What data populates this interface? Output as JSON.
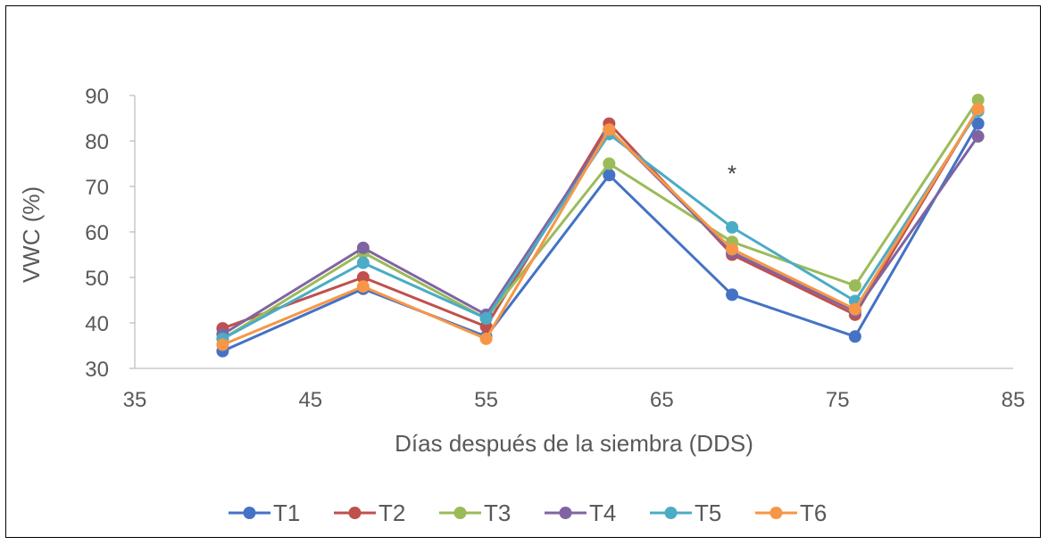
{
  "chart_data": {
    "type": "line",
    "xlabel": "Días después de la siembra (DDS)",
    "ylabel": "VWC (%)",
    "xlim": [
      35,
      85
    ],
    "ylim": [
      30,
      90
    ],
    "xticks": [
      35,
      45,
      55,
      65,
      75,
      85
    ],
    "yticks": [
      30,
      40,
      50,
      60,
      70,
      80,
      90
    ],
    "grid": false,
    "legend_position": "bottom",
    "x": [
      40,
      48,
      55,
      62,
      69,
      76,
      83
    ],
    "series": [
      {
        "name": "T1",
        "color": "#4472C4",
        "values": [
          33.8,
          47.5,
          37.0,
          72.5,
          46.2,
          37.0,
          83.8
        ]
      },
      {
        "name": "T2",
        "color": "#C0504D",
        "values": [
          38.8,
          50.0,
          39.2,
          83.8,
          55.0,
          41.8,
          87.0
        ]
      },
      {
        "name": "T3",
        "color": "#9BBB59",
        "values": [
          36.5,
          55.5,
          41.0,
          75.0,
          57.8,
          48.2,
          89.0
        ]
      },
      {
        "name": "T4",
        "color": "#8064A2",
        "values": [
          37.5,
          56.5,
          41.8,
          82.5,
          55.5,
          42.5,
          81.0
        ]
      },
      {
        "name": "T5",
        "color": "#4BACC6",
        "values": [
          36.5,
          53.2,
          41.0,
          81.5,
          61.0,
          44.8,
          86.5
        ]
      },
      {
        "name": "T6",
        "color": "#F79646",
        "values": [
          35.2,
          48.0,
          36.5,
          82.5,
          56.2,
          43.0,
          87.0
        ]
      }
    ],
    "annotations": [
      {
        "text": "*",
        "x": 69,
        "y": 75
      }
    ]
  }
}
